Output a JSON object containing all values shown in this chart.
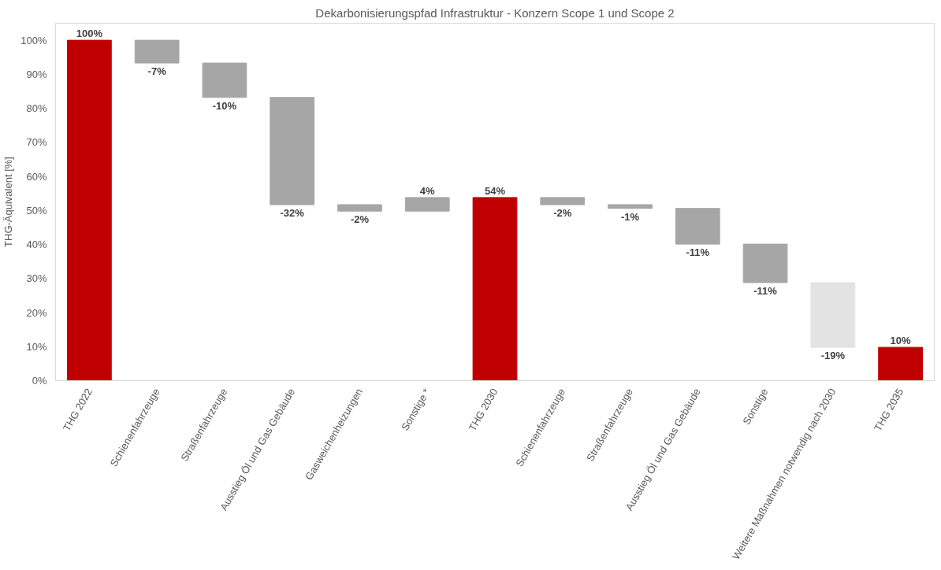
{
  "chart_data": {
    "type": "bar",
    "title": "Dekarbonisierungspfad Infrastruktur - Konzern Scope 1 und Scope 2",
    "ylabel": "THG-Äquivalent [%]",
    "categories": [
      "THG 2022",
      "Schienenfahrzeuge",
      "Straßenfahrzeuge",
      "Ausstieg Öl und Gas Gebäude",
      "Gasweichenheizungen",
      "Sonstige *",
      "THG 2030",
      "Schienenfahrzeuge",
      "Straßenfahrzeuge",
      "Ausstieg Öl und Gas Gebäude",
      "Sonstige",
      "Weitere Maßnahmen notwendig nach 2030",
      "THG 2035"
    ],
    "values": [
      100,
      -6.7,
      -10.1,
      -31.5,
      -1.9,
      4.0,
      53.8,
      -2.1,
      -1.1,
      -10.5,
      -11.3,
      -19.0,
      9.8
    ],
    "base": [
      0,
      100,
      93.3,
      83.2,
      51.7,
      49.8,
      0,
      53.8,
      51.7,
      50.6,
      40.1,
      28.8,
      0
    ],
    "colors": [
      "#c00000",
      "#a6a6a6",
      "#a6a6a6",
      "#a6a6a6",
      "#a6a6a6",
      "#a6a6a6",
      "#c00000",
      "#a6a6a6",
      "#a6a6a6",
      "#a6a6a6",
      "#a6a6a6",
      "#e3e3e3",
      "#c00000"
    ],
    "value_labels": [
      "100%",
      "-7%",
      "-10%",
      "-32%",
      "-2%",
      "4%",
      "54%",
      "-2%",
      "-1%",
      "-11%",
      "-11%",
      "-19%",
      "10%"
    ],
    "ylim": [
      0,
      105
    ],
    "yticks": [
      {
        "value": 0,
        "label": "0%"
      },
      {
        "value": 10,
        "label": "10%"
      },
      {
        "value": 20,
        "label": "20%"
      },
      {
        "value": 30,
        "label": "30%"
      },
      {
        "value": 40,
        "label": "40%"
      },
      {
        "value": 50,
        "label": "50%"
      },
      {
        "value": 60,
        "label": "60%"
      },
      {
        "value": 70,
        "label": "70%"
      },
      {
        "value": 80,
        "label": "80%"
      },
      {
        "value": 90,
        "label": "90%"
      },
      {
        "value": 100,
        "label": "100%"
      }
    ],
    "grid": false
  }
}
